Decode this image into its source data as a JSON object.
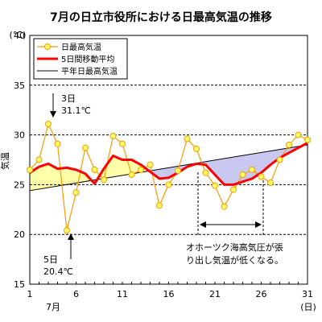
{
  "chart_data": {
    "type": "line",
    "title": "7月の日立市役所における日最高気温の推移",
    "y_unit_label": "(℃)",
    "ylabel": "気温",
    "ylim": [
      15,
      40
    ],
    "y_ticks": [
      15,
      20,
      25,
      30,
      35,
      40
    ],
    "xlim": [
      1,
      31
    ],
    "x_ticks": [
      1,
      6,
      11,
      16,
      21,
      26,
      31
    ],
    "x_month_label": "7月",
    "x_unit_label": "(日)",
    "grid": "dashed horizontal at 20, 25, 30, 35",
    "legend_position": "top-left",
    "series": [
      {
        "name": "日最高気温",
        "style": "orange line with yellow circle markers",
        "x": [
          1,
          2,
          3,
          4,
          5,
          6,
          7,
          8,
          9,
          10,
          11,
          12,
          13,
          14,
          15,
          16,
          17,
          18,
          19,
          20,
          21,
          22,
          23,
          24,
          25,
          26,
          27,
          28,
          29,
          30,
          31
        ],
        "values": [
          26.5,
          27.5,
          31.1,
          29.1,
          20.4,
          24.2,
          28.7,
          26.5,
          25.5,
          29.9,
          29.1,
          26.0,
          26.5,
          27.0,
          22.9,
          25.0,
          26.4,
          29.6,
          28.6,
          26.2,
          24.9,
          22.8,
          24.5,
          26.0,
          26.5,
          25.8,
          25.2,
          27.5,
          29.0,
          30.0,
          29.5
        ]
      },
      {
        "name": "5日間移動平均",
        "style": "thick red line",
        "x": [
          1,
          2,
          3,
          4,
          5,
          6,
          7,
          8,
          9,
          10,
          11,
          12,
          13,
          14,
          15,
          16,
          17,
          18,
          19,
          20,
          21,
          22,
          23,
          24,
          25,
          26,
          27,
          28,
          29,
          30,
          31
        ],
        "values": [
          26.2,
          26.8,
          27.1,
          26.6,
          26.7,
          26.5,
          26.1,
          25.1,
          26.6,
          27.9,
          27.5,
          27.5,
          27.0,
          26.3,
          25.6,
          25.7,
          26.2,
          26.8,
          27.1,
          27.0,
          26.0,
          25.0,
          25.0,
          25.3,
          25.6,
          26.2,
          27.0,
          27.7,
          28.2,
          28.7,
          29.2
        ]
      },
      {
        "name": "平年日最高気温",
        "style": "thin black line",
        "x": [
          1,
          31
        ],
        "values": [
          24.4,
          29.0
        ]
      }
    ],
    "annotations": {
      "max_day": "3日",
      "max_value": "31.1℃",
      "min_day": "5日",
      "min_value": "20.4℃",
      "note_line1": "オホーツク海高気圧が張",
      "note_line2": "り出し気温が低くなる。"
    },
    "colors": {
      "daily": "#ff9900",
      "marker_fill": "#ffff66",
      "moving_avg": "#ff0000",
      "normal": "#000000",
      "above_normal_fill": "#ffffaa",
      "below_normal_fill": "#c8c8f0"
    }
  }
}
